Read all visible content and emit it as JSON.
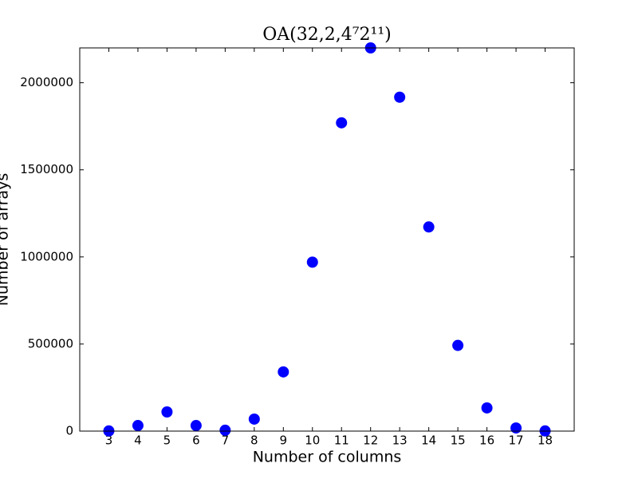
{
  "chart_data": {
    "type": "scatter",
    "title": "OA(32,2,4⁷2¹¹)",
    "x_label": "Number of columns",
    "y_label": "Number of arrays",
    "x": [
      3,
      4,
      5,
      6,
      7,
      8,
      9,
      10,
      11,
      12,
      13,
      14,
      15,
      16,
      17,
      18
    ],
    "values": [
      1000,
      32000,
      110000,
      32000,
      5000,
      69000,
      340000,
      970000,
      1770000,
      2200000,
      1917000,
      1172000,
      492000,
      133000,
      18000,
      1000
    ],
    "color": "#0000ff",
    "xlim": [
      2,
      19
    ],
    "xticks": [
      3,
      4,
      5,
      6,
      7,
      8,
      9,
      10,
      11,
      12,
      13,
      14,
      15,
      16,
      17,
      18
    ],
    "ylim": [
      0,
      2200000
    ],
    "yticks": [
      0,
      500000,
      1000000,
      1500000,
      2000000
    ],
    "grid": false
  }
}
